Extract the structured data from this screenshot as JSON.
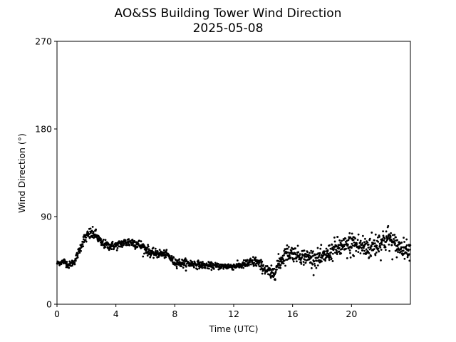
{
  "chart_data": {
    "type": "scatter",
    "title": "AO&SS Building Tower Wind Direction",
    "subtitle": "2025-05-08",
    "xlabel": "Time (UTC)",
    "ylabel": "Wind Direction (°)",
    "xlim": [
      0,
      24
    ],
    "ylim": [
      0,
      270
    ],
    "xticks": [
      0,
      4,
      8,
      12,
      16,
      20
    ],
    "xtick_labels": [
      "0",
      "4",
      "8",
      "12",
      "16",
      "20"
    ],
    "yticks": [
      0,
      90,
      180,
      270
    ],
    "ytick_labels": [
      "0",
      "90",
      "180",
      "270"
    ],
    "grid": false,
    "marker_color": "#000000",
    "series": [
      {
        "profile": [
          [
            0.0,
            42,
            2
          ],
          [
            0.5,
            44,
            3
          ],
          [
            0.8,
            40,
            3
          ],
          [
            1.2,
            44,
            3
          ],
          [
            1.5,
            55,
            4
          ],
          [
            1.8,
            66,
            5
          ],
          [
            2.2,
            72,
            6
          ],
          [
            2.6,
            72,
            5
          ],
          [
            3.0,
            63,
            4
          ],
          [
            3.5,
            60,
            4
          ],
          [
            4.0,
            60,
            4
          ],
          [
            4.5,
            63,
            4
          ],
          [
            5.0,
            64,
            5
          ],
          [
            5.5,
            62,
            5
          ],
          [
            6.0,
            57,
            5
          ],
          [
            6.5,
            52,
            4
          ],
          [
            7.0,
            52,
            4
          ],
          [
            7.5,
            51,
            3
          ],
          [
            7.9,
            44,
            4
          ],
          [
            8.5,
            42,
            4
          ],
          [
            9.0,
            42,
            4
          ],
          [
            10.0,
            40,
            3
          ],
          [
            11.0,
            39,
            3
          ],
          [
            12.0,
            39,
            3
          ],
          [
            12.5,
            40,
            3
          ],
          [
            13.0,
            42,
            5
          ],
          [
            13.5,
            44,
            5
          ],
          [
            14.0,
            38,
            5
          ],
          [
            14.6,
            30,
            7
          ],
          [
            15.0,
            40,
            8
          ],
          [
            15.5,
            52,
            8
          ],
          [
            16.0,
            53,
            7
          ],
          [
            16.5,
            50,
            7
          ],
          [
            17.0,
            48,
            8
          ],
          [
            18.0,
            47,
            8
          ],
          [
            18.5,
            53,
            8
          ],
          [
            19.0,
            58,
            10
          ],
          [
            19.5,
            58,
            10
          ],
          [
            20.0,
            62,
            12
          ],
          [
            20.5,
            60,
            12
          ],
          [
            21.0,
            58,
            12
          ],
          [
            21.5,
            60,
            12
          ],
          [
            22.0,
            64,
            12
          ],
          [
            22.5,
            68,
            12
          ],
          [
            23.0,
            60,
            10
          ],
          [
            23.5,
            58,
            8
          ],
          [
            24.0,
            56,
            8
          ]
        ],
        "points_per_hour": 60
      }
    ]
  }
}
